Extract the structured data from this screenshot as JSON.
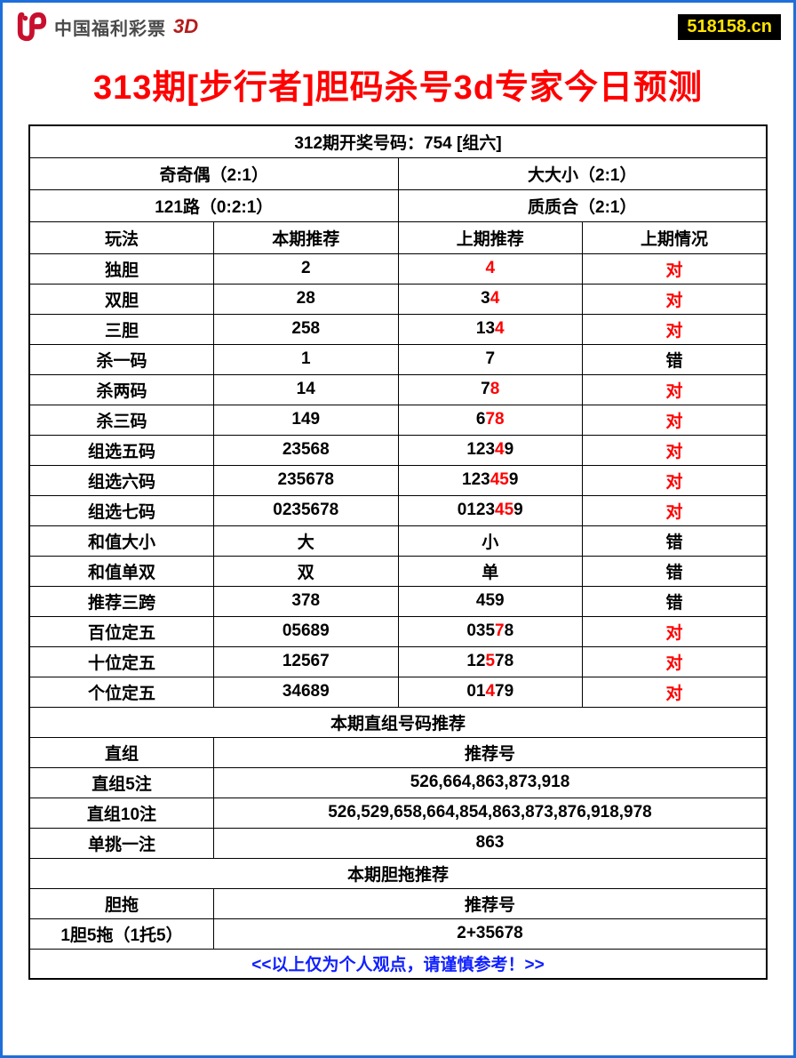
{
  "header": {
    "logo_text": "中国福利彩票",
    "logo_suffix": "3D",
    "site_badge": "518158.cn"
  },
  "title": "313期[步行者]胆码杀号3d专家今日预测",
  "top_banner": "312期开奖号码：754 [组六]",
  "meta_rows": [
    {
      "left": "奇奇偶（2:1）",
      "right": "大大小（2:1）"
    },
    {
      "left": "121路（0:2:1）",
      "right": "质质合（2:1）"
    }
  ],
  "col_headers": [
    "玩法",
    "本期推荐",
    "上期推荐",
    "上期情况"
  ],
  "rows": [
    {
      "name": "独胆",
      "cur": "2",
      "prev": [
        {
          "t": "4",
          "c": "red"
        }
      ],
      "status": {
        "t": "对",
        "c": "red"
      }
    },
    {
      "name": "双胆",
      "cur": "28",
      "prev": [
        {
          "t": "3",
          "c": "blk"
        },
        {
          "t": "4",
          "c": "red"
        }
      ],
      "status": {
        "t": "对",
        "c": "red"
      }
    },
    {
      "name": "三胆",
      "cur": "258",
      "prev": [
        {
          "t": "13",
          "c": "blk"
        },
        {
          "t": "4",
          "c": "red"
        }
      ],
      "status": {
        "t": "对",
        "c": "red"
      }
    },
    {
      "name": "杀一码",
      "cur": "1",
      "prev": [
        {
          "t": "7",
          "c": "blk"
        }
      ],
      "status": {
        "t": "错",
        "c": "blk"
      }
    },
    {
      "name": "杀两码",
      "cur": "14",
      "prev": [
        {
          "t": "7",
          "c": "blk"
        },
        {
          "t": "8",
          "c": "red"
        }
      ],
      "status": {
        "t": "对",
        "c": "red"
      }
    },
    {
      "name": "杀三码",
      "cur": "149",
      "prev": [
        {
          "t": "6",
          "c": "blk"
        },
        {
          "t": "78",
          "c": "red"
        }
      ],
      "status": {
        "t": "对",
        "c": "red"
      }
    },
    {
      "name": "组选五码",
      "cur": "23568",
      "prev": [
        {
          "t": "123",
          "c": "blk"
        },
        {
          "t": "4",
          "c": "red"
        },
        {
          "t": "9",
          "c": "blk"
        }
      ],
      "status": {
        "t": "对",
        "c": "red"
      }
    },
    {
      "name": "组选六码",
      "cur": "235678",
      "prev": [
        {
          "t": "123",
          "c": "blk"
        },
        {
          "t": "45",
          "c": "red"
        },
        {
          "t": "9",
          "c": "blk"
        }
      ],
      "status": {
        "t": "对",
        "c": "red"
      }
    },
    {
      "name": "组选七码",
      "cur": "0235678",
      "prev": [
        {
          "t": "0123",
          "c": "blk"
        },
        {
          "t": "45",
          "c": "red"
        },
        {
          "t": "9",
          "c": "blk"
        }
      ],
      "status": {
        "t": "对",
        "c": "red"
      }
    },
    {
      "name": "和值大小",
      "cur": "大",
      "prev": [
        {
          "t": "小",
          "c": "blk"
        }
      ],
      "status": {
        "t": "错",
        "c": "blk"
      }
    },
    {
      "name": "和值单双",
      "cur": "双",
      "prev": [
        {
          "t": "单",
          "c": "blk"
        }
      ],
      "status": {
        "t": "错",
        "c": "blk"
      }
    },
    {
      "name": "推荐三跨",
      "cur": "378",
      "prev": [
        {
          "t": "459",
          "c": "blk"
        }
      ],
      "status": {
        "t": "错",
        "c": "blk"
      }
    },
    {
      "name": "百位定五",
      "cur": "05689",
      "prev": [
        {
          "t": "035",
          "c": "blk"
        },
        {
          "t": "7",
          "c": "red"
        },
        {
          "t": "8",
          "c": "blk"
        }
      ],
      "status": {
        "t": "对",
        "c": "red"
      }
    },
    {
      "name": "十位定五",
      "cur": "12567",
      "prev": [
        {
          "t": "12",
          "c": "blk"
        },
        {
          "t": "5",
          "c": "red"
        },
        {
          "t": "78",
          "c": "blk"
        }
      ],
      "status": {
        "t": "对",
        "c": "red"
      }
    },
    {
      "name": "个位定五",
      "cur": "34689",
      "prev": [
        {
          "t": "01",
          "c": "blk"
        },
        {
          "t": "4",
          "c": "red"
        },
        {
          "t": "79",
          "c": "blk"
        }
      ],
      "status": {
        "t": "对",
        "c": "red"
      }
    }
  ],
  "section2_title": "本期直组号码推荐",
  "section2_header": {
    "left": "直组",
    "right": "推荐号"
  },
  "section2_rows": [
    {
      "name": "直组5注",
      "val": "526,664,863,873,918"
    },
    {
      "name": "直组10注",
      "val": "526,529,658,664,854,863,873,876,918,978"
    },
    {
      "name": "单挑一注",
      "val": "863"
    }
  ],
  "section3_title": "本期胆拖推荐",
  "section3_header": {
    "left": "胆拖",
    "right": "推荐号"
  },
  "section3_rows": [
    {
      "name": "1胆5拖（1托5）",
      "val": "2+35678"
    }
  ],
  "footer": "<<以上仅为个人观点，请谨慎参考！>>",
  "colors": {
    "border": "#1e6fd9",
    "title": "#ff0000",
    "highlight": "#ff0000",
    "normal": "#000000",
    "footer": "#1020ff",
    "badge_bg": "#000000",
    "badge_fg": "#ffe400"
  }
}
